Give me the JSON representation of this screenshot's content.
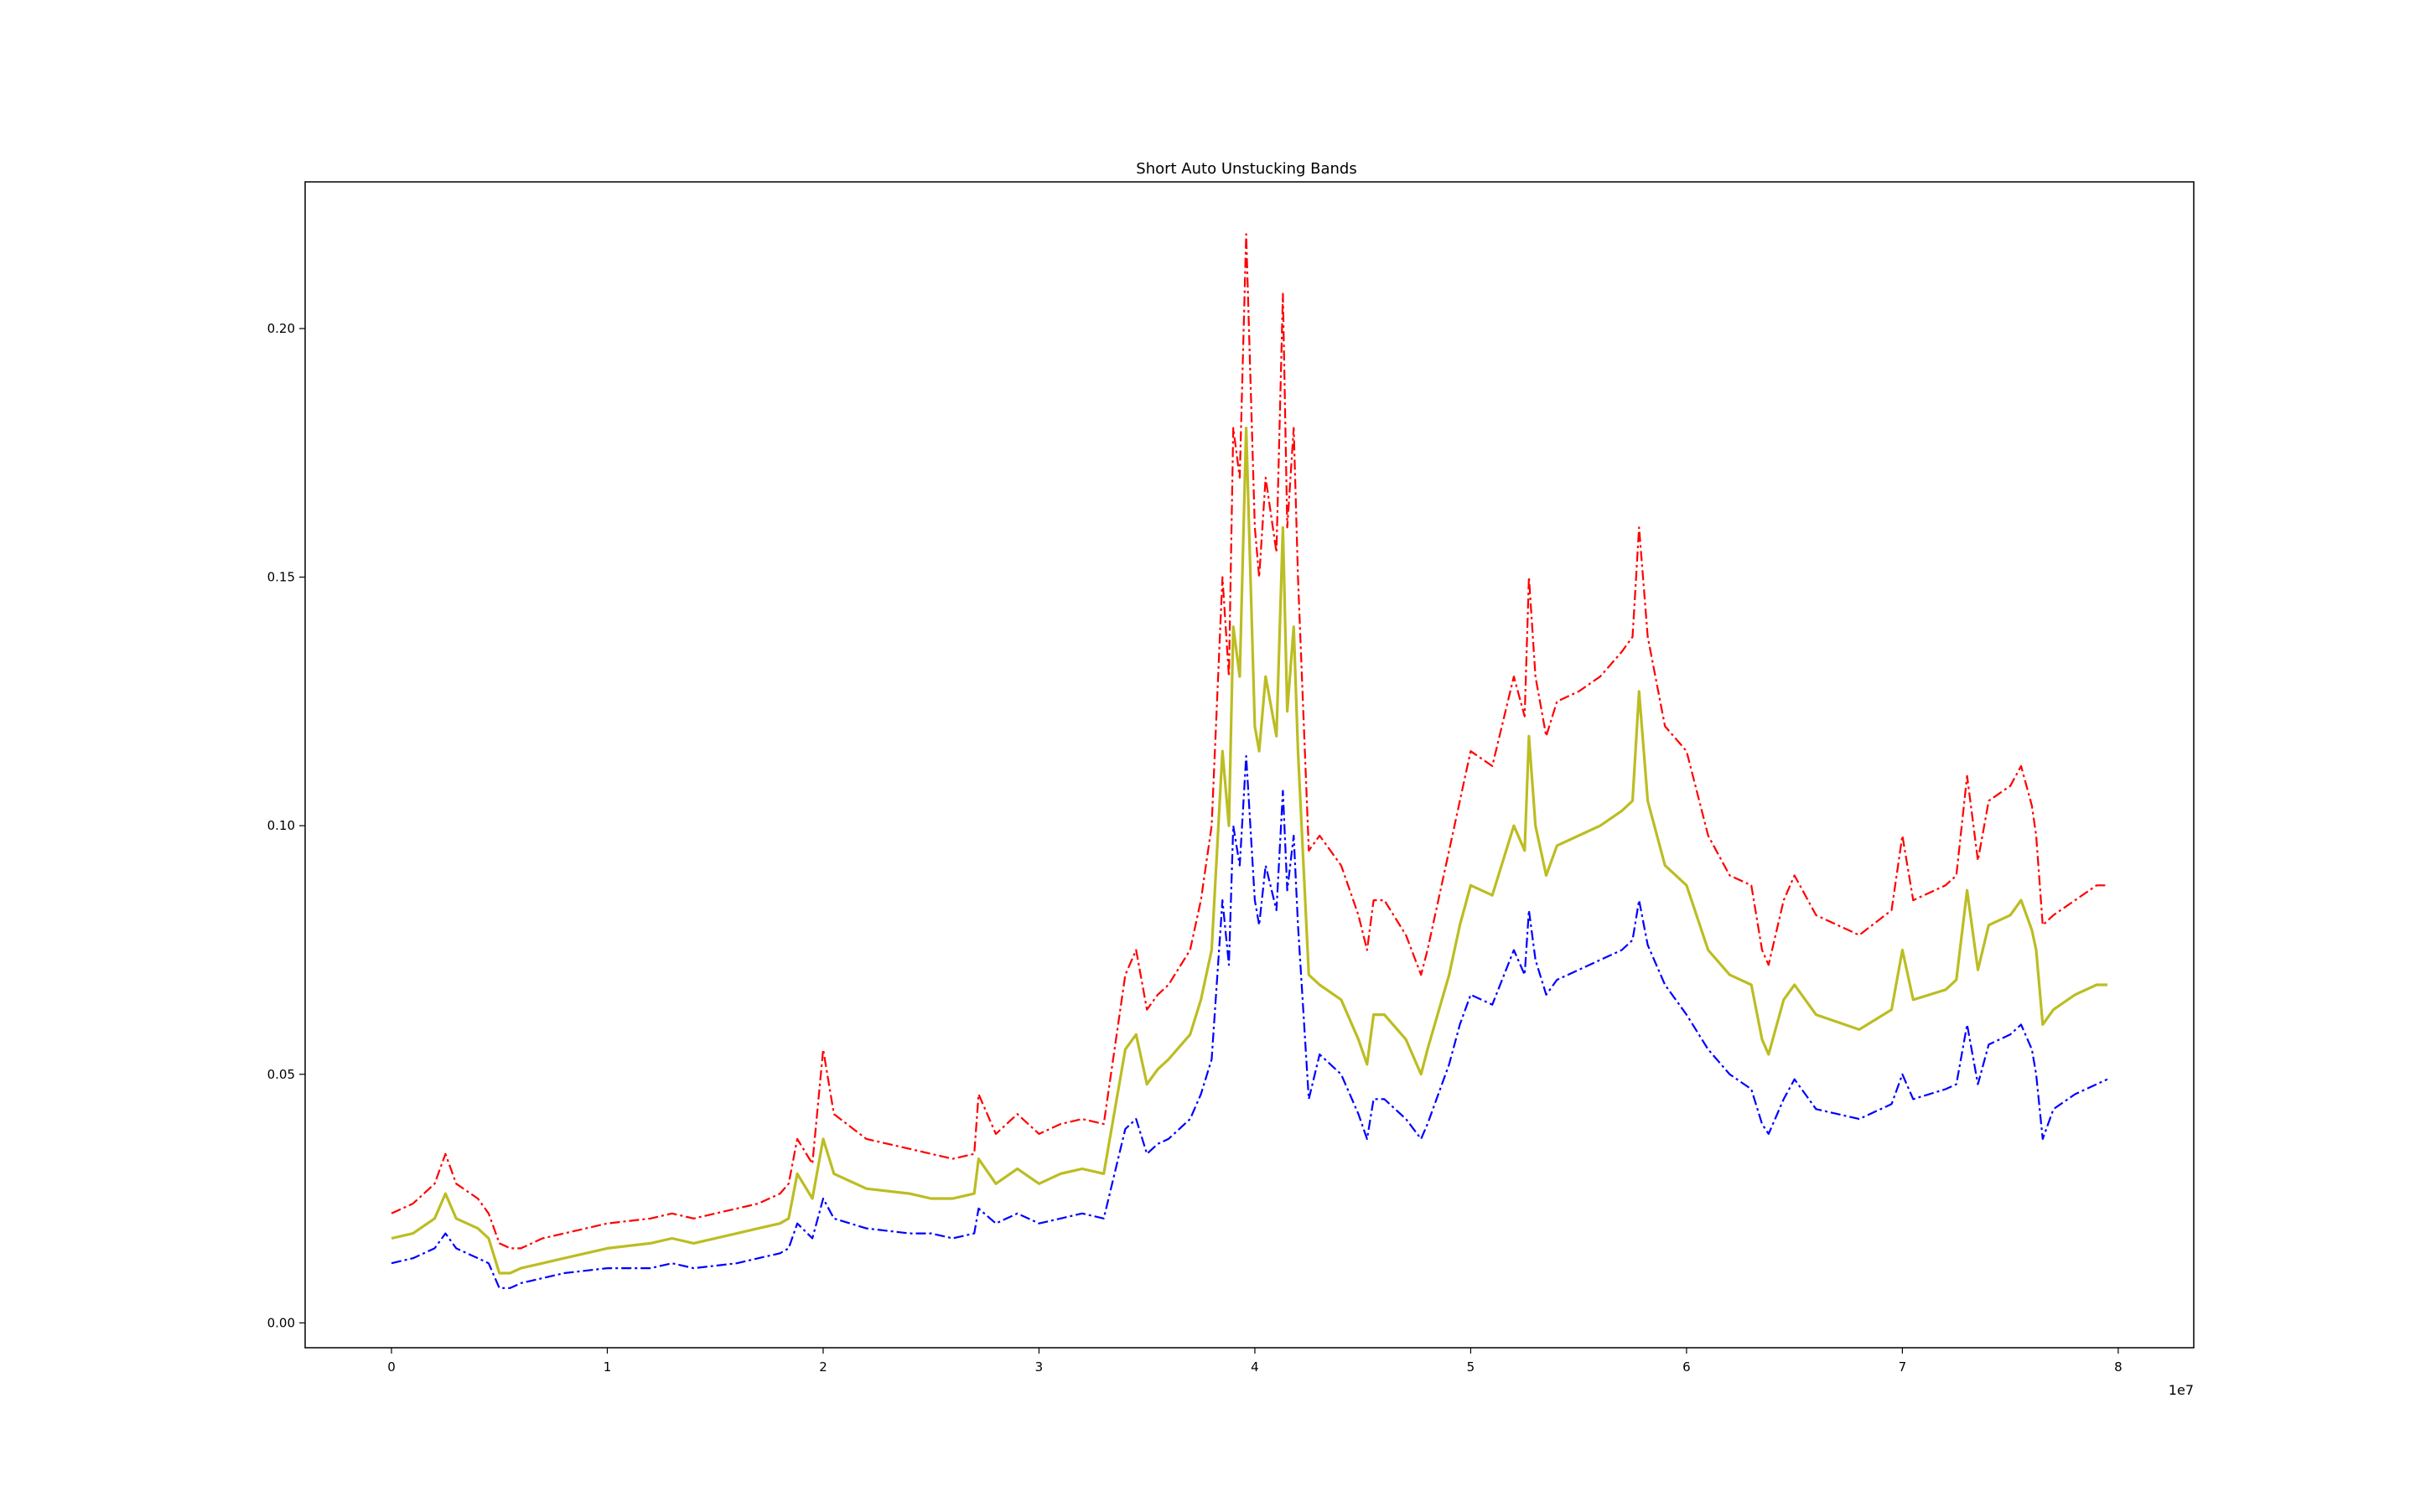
{
  "chart_data": {
    "type": "line",
    "title": "Short Auto Unstucking Bands",
    "xlabel": "",
    "ylabel": "",
    "x_offset_label": "1e7",
    "xlim": [
      -0.4,
      8.35
    ],
    "ylim": [
      -0.005,
      0.2295
    ],
    "x_ticks": [
      0,
      1,
      2,
      3,
      4,
      5,
      6,
      7,
      8
    ],
    "x_tick_labels": [
      "0",
      "1",
      "2",
      "3",
      "4",
      "5",
      "6",
      "7",
      "8"
    ],
    "y_ticks": [
      0.0,
      0.05,
      0.1,
      0.15,
      0.2
    ],
    "y_tick_labels": [
      "0.00",
      "0.05",
      "0.10",
      "0.15",
      "0.20"
    ],
    "grid": false,
    "legend": "none",
    "x": [
      0,
      0.1,
      0.2,
      0.25,
      0.3,
      0.4,
      0.45,
      0.5,
      0.55,
      0.6,
      0.7,
      0.8,
      1.0,
      1.2,
      1.3,
      1.4,
      1.6,
      1.7,
      1.8,
      1.84,
      1.88,
      1.95,
      2.0,
      2.05,
      2.2,
      2.4,
      2.5,
      2.6,
      2.7,
      2.72,
      2.8,
      2.9,
      3.0,
      3.1,
      3.2,
      3.3,
      3.4,
      3.45,
      3.5,
      3.55,
      3.6,
      3.7,
      3.75,
      3.8,
      3.85,
      3.88,
      3.9,
      3.93,
      3.96,
      4.0,
      4.02,
      4.05,
      4.1,
      4.13,
      4.15,
      4.18,
      4.2,
      4.25,
      4.3,
      4.4,
      4.48,
      4.52,
      4.55,
      4.6,
      4.7,
      4.77,
      4.8,
      4.9,
      4.95,
      5.0,
      5.1,
      5.2,
      5.25,
      5.27,
      5.3,
      5.35,
      5.4,
      5.5,
      5.6,
      5.7,
      5.75,
      5.78,
      5.82,
      5.9,
      6.0,
      6.1,
      6.2,
      6.3,
      6.35,
      6.38,
      6.45,
      6.5,
      6.6,
      6.8,
      6.95,
      7.0,
      7.05,
      7.2,
      7.25,
      7.3,
      7.35,
      7.4,
      7.5,
      7.55,
      7.6,
      7.62,
      7.65,
      7.7,
      7.8,
      7.9,
      7.95
    ],
    "series": [
      {
        "color": "#ff0000",
        "linestyle": "dashdot",
        "values": [
          0.022,
          0.024,
          0.028,
          0.034,
          0.028,
          0.025,
          0.022,
          0.016,
          0.015,
          0.015,
          0.017,
          0.018,
          0.02,
          0.021,
          0.022,
          0.021,
          0.023,
          0.024,
          0.026,
          0.028,
          0.037,
          0.032,
          0.055,
          0.042,
          0.037,
          0.035,
          0.034,
          0.033,
          0.034,
          0.046,
          0.038,
          0.042,
          0.038,
          0.04,
          0.041,
          0.04,
          0.07,
          0.075,
          0.063,
          0.066,
          0.068,
          0.075,
          0.085,
          0.1,
          0.15,
          0.13,
          0.18,
          0.17,
          0.219,
          0.16,
          0.15,
          0.17,
          0.155,
          0.207,
          0.16,
          0.18,
          0.15,
          0.095,
          0.098,
          0.092,
          0.082,
          0.075,
          0.085,
          0.085,
          0.078,
          0.07,
          0.075,
          0.095,
          0.105,
          0.115,
          0.112,
          0.13,
          0.122,
          0.15,
          0.13,
          0.118,
          0.125,
          0.127,
          0.13,
          0.135,
          0.138,
          0.16,
          0.138,
          0.12,
          0.115,
          0.098,
          0.09,
          0.088,
          0.075,
          0.072,
          0.085,
          0.09,
          0.082,
          0.078,
          0.083,
          0.098,
          0.085,
          0.088,
          0.09,
          0.11,
          0.093,
          0.105,
          0.108,
          0.112,
          0.104,
          0.098,
          0.08,
          0.082,
          0.085,
          0.088,
          0.088
        ]
      },
      {
        "color": "#bcbd22",
        "linestyle": "solid",
        "values": [
          0.017,
          0.018,
          0.021,
          0.026,
          0.021,
          0.019,
          0.017,
          0.01,
          0.01,
          0.011,
          0.012,
          0.013,
          0.015,
          0.016,
          0.017,
          0.016,
          0.018,
          0.019,
          0.02,
          0.021,
          0.03,
          0.025,
          0.037,
          0.03,
          0.027,
          0.026,
          0.025,
          0.025,
          0.026,
          0.033,
          0.028,
          0.031,
          0.028,
          0.03,
          0.031,
          0.03,
          0.055,
          0.058,
          0.048,
          0.051,
          0.053,
          0.058,
          0.065,
          0.075,
          0.115,
          0.1,
          0.14,
          0.13,
          0.18,
          0.12,
          0.115,
          0.13,
          0.118,
          0.16,
          0.123,
          0.14,
          0.115,
          0.07,
          0.068,
          0.065,
          0.057,
          0.052,
          0.062,
          0.062,
          0.057,
          0.05,
          0.055,
          0.07,
          0.08,
          0.088,
          0.086,
          0.1,
          0.095,
          0.118,
          0.1,
          0.09,
          0.096,
          0.098,
          0.1,
          0.103,
          0.105,
          0.127,
          0.105,
          0.092,
          0.088,
          0.075,
          0.07,
          0.068,
          0.057,
          0.054,
          0.065,
          0.068,
          0.062,
          0.059,
          0.063,
          0.075,
          0.065,
          0.067,
          0.069,
          0.087,
          0.071,
          0.08,
          0.082,
          0.085,
          0.079,
          0.075,
          0.06,
          0.063,
          0.066,
          0.068,
          0.068
        ]
      },
      {
        "color": "#0000ff",
        "linestyle": "dashdot",
        "values": [
          0.012,
          0.013,
          0.015,
          0.018,
          0.015,
          0.013,
          0.012,
          0.007,
          0.007,
          0.008,
          0.009,
          0.01,
          0.011,
          0.011,
          0.012,
          0.011,
          0.012,
          0.013,
          0.014,
          0.015,
          0.02,
          0.017,
          0.025,
          0.021,
          0.019,
          0.018,
          0.018,
          0.017,
          0.018,
          0.023,
          0.02,
          0.022,
          0.02,
          0.021,
          0.022,
          0.021,
          0.039,
          0.041,
          0.034,
          0.036,
          0.037,
          0.041,
          0.046,
          0.053,
          0.085,
          0.072,
          0.1,
          0.092,
          0.114,
          0.085,
          0.08,
          0.092,
          0.083,
          0.107,
          0.087,
          0.098,
          0.08,
          0.045,
          0.054,
          0.05,
          0.042,
          0.037,
          0.045,
          0.045,
          0.041,
          0.037,
          0.04,
          0.052,
          0.06,
          0.066,
          0.064,
          0.075,
          0.07,
          0.083,
          0.073,
          0.066,
          0.069,
          0.071,
          0.073,
          0.075,
          0.077,
          0.085,
          0.076,
          0.068,
          0.062,
          0.055,
          0.05,
          0.047,
          0.04,
          0.038,
          0.045,
          0.049,
          0.043,
          0.041,
          0.044,
          0.05,
          0.045,
          0.047,
          0.048,
          0.06,
          0.048,
          0.056,
          0.058,
          0.06,
          0.055,
          0.05,
          0.037,
          0.043,
          0.046,
          0.048,
          0.049
        ]
      }
    ]
  }
}
